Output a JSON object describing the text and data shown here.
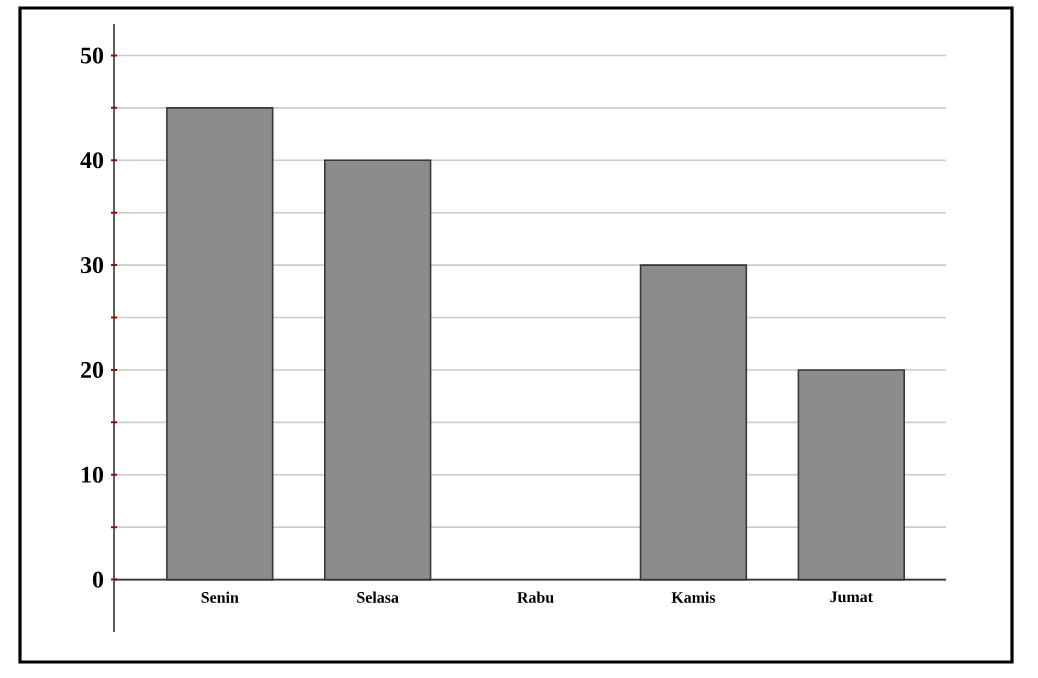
{
  "chart_data": {
    "type": "bar",
    "categories": [
      "Senin",
      "Selasa",
      "Rabu",
      "Kamis",
      "Jumat"
    ],
    "values": [
      45,
      40,
      null,
      30,
      20
    ],
    "color": "#8c8c8c",
    "ylim": [
      -5,
      53
    ],
    "yticks": [
      0,
      {
        "value": 5,
        "label": null
      },
      10,
      {
        "value": 15,
        "label": null
      },
      20,
      {
        "value": 25,
        "label": null
      },
      30,
      {
        "value": 35,
        "label": null
      },
      40,
      {
        "value": 45,
        "label": null
      },
      50
    ],
    "grid": "y"
  }
}
